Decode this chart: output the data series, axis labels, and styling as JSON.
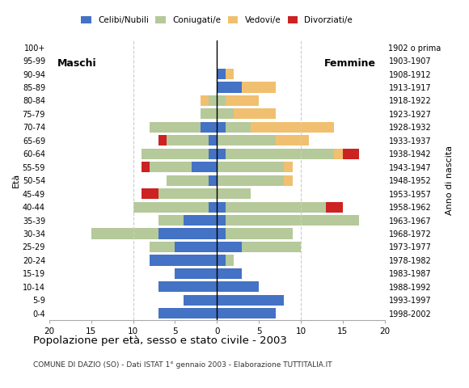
{
  "age_groups": [
    "0-4",
    "5-9",
    "10-14",
    "15-19",
    "20-24",
    "25-29",
    "30-34",
    "35-39",
    "40-44",
    "45-49",
    "50-54",
    "55-59",
    "60-64",
    "65-69",
    "70-74",
    "75-79",
    "80-84",
    "85-89",
    "90-94",
    "95-99",
    "100+"
  ],
  "birth_years": [
    "1998-2002",
    "1993-1997",
    "1988-1992",
    "1983-1987",
    "1978-1982",
    "1973-1977",
    "1968-1972",
    "1963-1967",
    "1958-1962",
    "1953-1957",
    "1948-1952",
    "1943-1947",
    "1938-1942",
    "1933-1937",
    "1928-1932",
    "1923-1927",
    "1918-1922",
    "1913-1917",
    "1908-1912",
    "1903-1907",
    "1902 o prima"
  ],
  "male_celibi": [
    7,
    4,
    7,
    5,
    8,
    5,
    7,
    4,
    1,
    0,
    1,
    3,
    1,
    1,
    2,
    0,
    0,
    0,
    0,
    0,
    0
  ],
  "male_coniugati": [
    0,
    0,
    0,
    0,
    0,
    3,
    8,
    3,
    9,
    7,
    5,
    5,
    8,
    5,
    6,
    2,
    1,
    0,
    0,
    0,
    0
  ],
  "male_vedovi": [
    0,
    0,
    0,
    0,
    0,
    0,
    0,
    0,
    0,
    0,
    0,
    0,
    0,
    0,
    0,
    0,
    1,
    0,
    0,
    0,
    0
  ],
  "male_divorziati": [
    0,
    0,
    0,
    0,
    0,
    0,
    0,
    0,
    0,
    2,
    0,
    1,
    0,
    1,
    0,
    0,
    0,
    0,
    0,
    0,
    0
  ],
  "female_celibi": [
    7,
    8,
    5,
    3,
    1,
    3,
    1,
    1,
    1,
    0,
    0,
    0,
    1,
    0,
    1,
    0,
    0,
    3,
    1,
    0,
    0
  ],
  "female_coniugati": [
    0,
    0,
    0,
    0,
    1,
    7,
    8,
    16,
    12,
    4,
    8,
    8,
    13,
    7,
    3,
    2,
    1,
    0,
    0,
    0,
    0
  ],
  "female_vedovi": [
    0,
    0,
    0,
    0,
    0,
    0,
    0,
    0,
    0,
    0,
    1,
    1,
    1,
    4,
    10,
    5,
    4,
    4,
    1,
    0,
    0
  ],
  "female_divorziati": [
    0,
    0,
    0,
    0,
    0,
    0,
    0,
    0,
    2,
    0,
    0,
    0,
    2,
    0,
    0,
    0,
    0,
    0,
    0,
    0,
    0
  ],
  "color_celibi": "#4472c4",
  "color_coniugati": "#b5c99a",
  "color_vedovi": "#f0c070",
  "color_divorziati": "#cc2222",
  "title": "Popolazione per età, sesso e stato civile - 2003",
  "subtitle": "COMUNE DI DAZIO (SO) - Dati ISTAT 1° gennaio 2003 - Elaborazione TUTTITALIA.IT",
  "label_male": "Maschi",
  "label_female": "Femmine",
  "ylabel_left": "Età",
  "ylabel_right": "Anno di nascita",
  "xlim": 20,
  "bg_color": "#ffffff",
  "grid_color": "#cccccc",
  "legend_labels": [
    "Celibi/Nubili",
    "Coniugati/e",
    "Vedovi/e",
    "Divorziati/e"
  ]
}
